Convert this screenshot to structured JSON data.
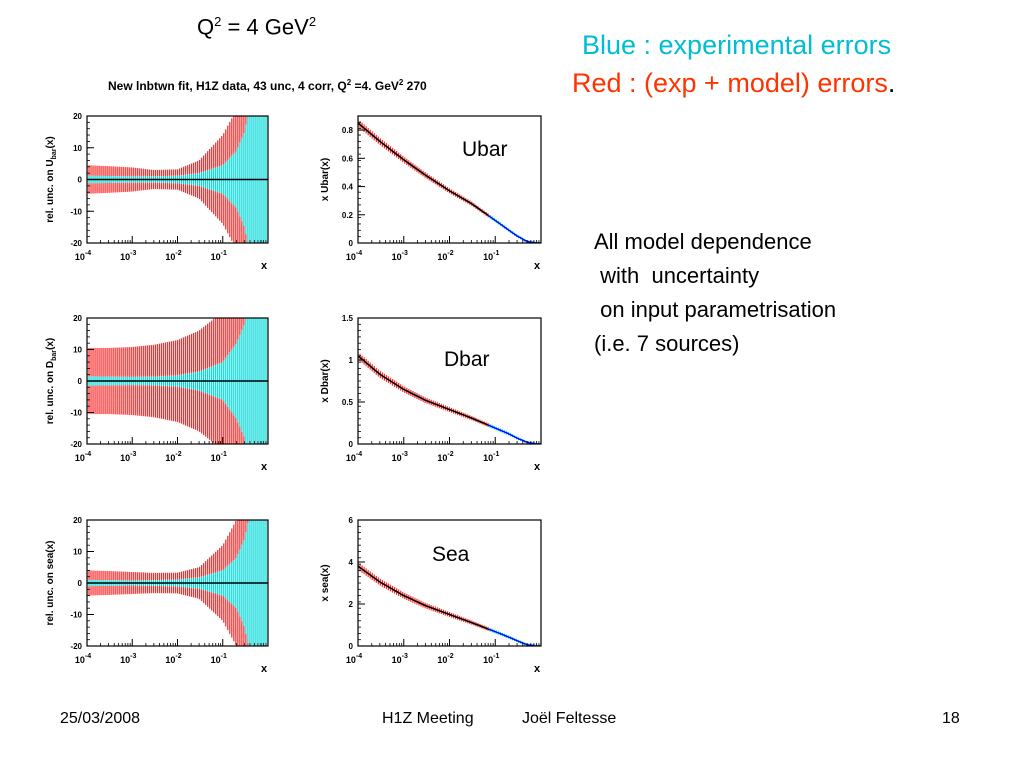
{
  "header": {
    "q2_base": "Q",
    "q2_exp": "2",
    "q2_mid": " = 4 GeV",
    "q2_exp2": "2",
    "legend_blue": "Blue : experimental errors",
    "legend_red": "Red : (exp + model) errors",
    "legend_red_dot": ".",
    "fit_title_main": "New lnbtwn fit, H1Z data, 43 unc, 4 corr, Q",
    "fit_title_exp": "2",
    "fit_title_mid": " =4. GeV",
    "fit_title_exp2": "2",
    "fit_title_end": " 270"
  },
  "note": {
    "lines": [
      "All model dependence",
      " with  uncertainty",
      " on input parametrisation",
      "(i.e. 7 sources)"
    ]
  },
  "footer": {
    "date": "25/03/2008",
    "meeting": "H1Z Meeting",
    "author": "Joël Feltesse",
    "page": "18"
  },
  "colors": {
    "experimental": "#00d8d8",
    "model": "#ff2a2a",
    "central": "#000000",
    "central_right": "#0000ff"
  },
  "chart_data": [
    {
      "type": "area",
      "ylabel": "rel. unc. on U",
      "ylabel_sub": "bar",
      "ylabel_end": "(x)",
      "xlabel": "x",
      "xscale": "log",
      "xlim": [
        0.0001,
        1
      ],
      "ylim": [
        -20,
        20
      ],
      "yticks": [
        "20",
        "10",
        "0",
        "-10",
        "-20"
      ],
      "xticks": [
        "10",
        "10",
        "10",
        "10"
      ],
      "xtick_exps": [
        "-4",
        "-3",
        "-2",
        "-1"
      ],
      "x": [
        0.0001,
        0.0003,
        0.001,
        0.003,
        0.01,
        0.03,
        0.1,
        0.2,
        0.3,
        0.5,
        0.8
      ],
      "series": [
        {
          "name": "Blue : experimental errors",
          "upper": [
            1.2,
            1.1,
            1.0,
            1.0,
            1.2,
            2.0,
            4.5,
            9,
            15,
            30,
            40
          ]
        },
        {
          "name": "Red : (exp + model) errors",
          "upper": [
            4.5,
            4.2,
            3.8,
            3.0,
            3.2,
            6.0,
            14,
            22,
            30,
            40,
            40
          ]
        }
      ]
    },
    {
      "type": "line",
      "ylabel": "x Ubar(x)",
      "label": "Ubar",
      "xlabel": "x",
      "xscale": "log",
      "xlim": [
        0.0001,
        1
      ],
      "ylim": [
        0,
        0.9
      ],
      "yticks": [
        "0.8",
        "0.6",
        "0.4",
        "0.2",
        "0"
      ],
      "xticks": [
        "10",
        "10",
        "10",
        "10"
      ],
      "xtick_exps": [
        "-4",
        "-3",
        "-2",
        "-1"
      ],
      "x": [
        0.0001,
        0.0003,
        0.001,
        0.003,
        0.01,
        0.03,
        0.1,
        0.2,
        0.3,
        0.5,
        0.8
      ],
      "y": [
        0.85,
        0.72,
        0.59,
        0.48,
        0.37,
        0.28,
        0.16,
        0.09,
        0.05,
        0.01,
        0.0
      ]
    },
    {
      "type": "area",
      "ylabel": "rel. unc. on D",
      "ylabel_sub": "bar",
      "ylabel_end": "(x)",
      "xlabel": "x",
      "xscale": "log",
      "xlim": [
        0.0001,
        1
      ],
      "ylim": [
        -20,
        20
      ],
      "yticks": [
        "20",
        "10",
        "0",
        "-10",
        "-20"
      ],
      "xticks": [
        "10",
        "10",
        "10",
        "10"
      ],
      "xtick_exps": [
        "-4",
        "-3",
        "-2",
        "-1"
      ],
      "x": [
        0.0001,
        0.0003,
        0.001,
        0.003,
        0.01,
        0.03,
        0.1,
        0.2,
        0.3,
        0.5,
        0.8
      ],
      "series": [
        {
          "name": "Blue : experimental errors",
          "upper": [
            1.5,
            1.4,
            1.3,
            1.4,
            1.8,
            3.0,
            6.0,
            12,
            18,
            30,
            40
          ]
        },
        {
          "name": "Red : (exp + model) errors",
          "upper": [
            10.5,
            10.5,
            10.8,
            11.5,
            13,
            16,
            22,
            30,
            40,
            40,
            40
          ]
        }
      ]
    },
    {
      "type": "line",
      "ylabel": "x Dbar(x)",
      "label": "Dbar",
      "xlabel": "x",
      "xscale": "log",
      "xlim": [
        0.0001,
        1
      ],
      "ylim": [
        0,
        1.5
      ],
      "yticks": [
        "1.5",
        "1",
        "0.5",
        "0"
      ],
      "xticks": [
        "10",
        "10",
        "10",
        "10"
      ],
      "xtick_exps": [
        "-4",
        "-3",
        "-2",
        "-1"
      ],
      "x": [
        0.0001,
        0.0003,
        0.001,
        0.003,
        0.01,
        0.03,
        0.1,
        0.2,
        0.3,
        0.5,
        0.8
      ],
      "y": [
        1.05,
        0.83,
        0.65,
        0.52,
        0.41,
        0.31,
        0.19,
        0.12,
        0.07,
        0.02,
        0.0
      ]
    },
    {
      "type": "area",
      "ylabel": "rel. unc. on sea(x)",
      "xlabel": "x",
      "xscale": "log",
      "xlim": [
        0.0001,
        1
      ],
      "ylim": [
        -20,
        20
      ],
      "yticks": [
        "20",
        "10",
        "0",
        "-10",
        "-20"
      ],
      "xticks": [
        "10",
        "10",
        "10",
        "10"
      ],
      "xtick_exps": [
        "-4",
        "-3",
        "-2",
        "-1"
      ],
      "x": [
        0.0001,
        0.0003,
        0.001,
        0.003,
        0.01,
        0.03,
        0.1,
        0.2,
        0.3,
        0.5,
        0.8
      ],
      "series": [
        {
          "name": "Blue : experimental errors",
          "upper": [
            1.0,
            0.9,
            0.8,
            0.9,
            1.1,
            1.8,
            4.0,
            8,
            14,
            28,
            40
          ]
        },
        {
          "name": "Red : (exp + model) errors",
          "upper": [
            4.0,
            3.8,
            3.5,
            3.2,
            3.3,
            5.0,
            12,
            20,
            30,
            40,
            40
          ]
        }
      ]
    },
    {
      "type": "line",
      "ylabel": "x sea(x)",
      "label": "Sea",
      "xlabel": "x",
      "xscale": "log",
      "xlim": [
        0.0001,
        1
      ],
      "ylim": [
        0,
        6
      ],
      "yticks": [
        "6",
        "4",
        "2",
        "0"
      ],
      "xticks": [
        "10",
        "10",
        "10",
        "10"
      ],
      "xtick_exps": [
        "-4",
        "-3",
        "-2",
        "-1"
      ],
      "x": [
        0.0001,
        0.0003,
        0.001,
        0.003,
        0.01,
        0.03,
        0.1,
        0.2,
        0.3,
        0.5,
        0.8
      ],
      "y": [
        3.8,
        3.05,
        2.4,
        1.92,
        1.5,
        1.12,
        0.68,
        0.42,
        0.25,
        0.06,
        0.0
      ]
    }
  ]
}
